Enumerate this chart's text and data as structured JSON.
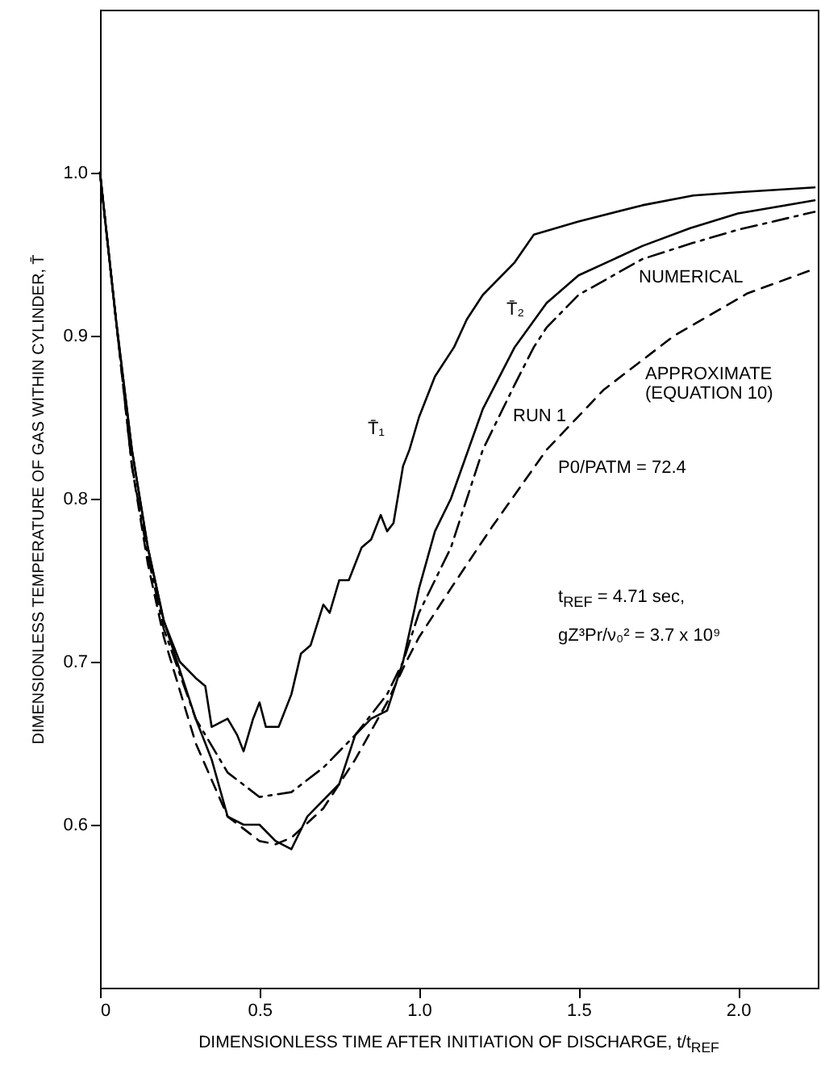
{
  "chart_data": {
    "type": "line",
    "xlabel": "DIMENSIONLESS TIME AFTER INITIATION OF DISCHARGE, t/t$_{REF}$",
    "ylabel": "DIMENSIONLESS TEMPERATURE OF GAS WITHIN CYLINDER, T̄",
    "xlim": [
      0,
      2.25
    ],
    "ylim": [
      0.5,
      1.1
    ],
    "xticks": [
      {
        "value": 0,
        "label": "0"
      },
      0.5,
      {
        "value": 1,
        "label": "1.0"
      },
      1.5,
      {
        "value": 2,
        "label": "2.0"
      }
    ],
    "yticks": [
      0.6,
      0.7,
      0.8,
      0.9,
      {
        "value": 1,
        "label": "1.0"
      }
    ],
    "grid": false,
    "marker": "none",
    "series": [
      {
        "color": "#000000",
        "line_style": "solid",
        "x": [
          0,
          0.05,
          0.1,
          0.15,
          0.2,
          0.25,
          0.3,
          0.33,
          0.35,
          0.4,
          0.43,
          0.45,
          0.48,
          0.5,
          0.52,
          0.56,
          0.6,
          0.63,
          0.66,
          0.7,
          0.72,
          0.75,
          0.78,
          0.8,
          0.82,
          0.85,
          0.88,
          0.9,
          0.92,
          0.95,
          0.97,
          1.0,
          1.05,
          1.11,
          1.15,
          1.2,
          1.3,
          1.36,
          1.5,
          1.7,
          1.86,
          2.0,
          2.24
        ],
        "values": [
          1.0,
          0.91,
          0.83,
          0.77,
          0.725,
          0.7,
          0.69,
          0.685,
          0.66,
          0.665,
          0.655,
          0.645,
          0.665,
          0.675,
          0.66,
          0.66,
          0.68,
          0.705,
          0.71,
          0.735,
          0.73,
          0.75,
          0.75,
          0.76,
          0.77,
          0.775,
          0.79,
          0.78,
          0.785,
          0.82,
          0.83,
          0.85,
          0.875,
          0.893,
          0.91,
          0.925,
          0.945,
          0.962,
          0.97,
          0.98,
          0.986,
          0.988,
          0.991
        ]
      },
      {
        "color": "#000000",
        "line_style": "solid",
        "x": [
          0,
          0.05,
          0.1,
          0.15,
          0.2,
          0.25,
          0.3,
          0.35,
          0.4,
          0.45,
          0.5,
          0.55,
          0.6,
          0.65,
          0.7,
          0.75,
          0.8,
          0.85,
          0.9,
          0.95,
          1.0,
          1.05,
          1.1,
          1.2,
          1.3,
          1.4,
          1.5,
          1.7,
          1.85,
          2.0,
          2.24
        ],
        "values": [
          1.0,
          0.91,
          0.83,
          0.77,
          0.725,
          0.695,
          0.665,
          0.64,
          0.605,
          0.6,
          0.6,
          0.59,
          0.585,
          0.605,
          0.615,
          0.625,
          0.655,
          0.665,
          0.67,
          0.7,
          0.745,
          0.78,
          0.8,
          0.855,
          0.893,
          0.92,
          0.937,
          0.955,
          0.966,
          0.975,
          0.983
        ]
      },
      {
        "color": "#000000",
        "line_style": "dashdot",
        "x": [
          0,
          0.05,
          0.1,
          0.15,
          0.2,
          0.3,
          0.4,
          0.5,
          0.6,
          0.7,
          0.8,
          0.9,
          0.95,
          1.0,
          1.05,
          1.1,
          1.2,
          1.3,
          1.36,
          1.4,
          1.5,
          1.7,
          1.86,
          2.0,
          2.24
        ],
        "values": [
          1.0,
          0.91,
          0.82,
          0.765,
          0.72,
          0.665,
          0.632,
          0.617,
          0.62,
          0.635,
          0.655,
          0.68,
          0.7,
          0.73,
          0.75,
          0.77,
          0.83,
          0.87,
          0.893,
          0.905,
          0.925,
          0.947,
          0.957,
          0.965,
          0.976
        ]
      },
      {
        "color": "#000000",
        "line_style": "dashed",
        "x": [
          0,
          0.05,
          0.1,
          0.15,
          0.2,
          0.3,
          0.4,
          0.5,
          0.55,
          0.6,
          0.7,
          0.8,
          0.9,
          0.96,
          1.0,
          1.1,
          1.23,
          1.4,
          1.58,
          1.8,
          2.03,
          2.24
        ],
        "values": [
          1.0,
          0.91,
          0.82,
          0.76,
          0.715,
          0.65,
          0.605,
          0.59,
          0.588,
          0.592,
          0.61,
          0.64,
          0.675,
          0.7,
          0.715,
          0.745,
          0.783,
          0.83,
          0.867,
          0.9,
          0.926,
          0.941
        ]
      }
    ],
    "annotations": [
      "T̄₁",
      "T̄₂",
      "NUMERICAL",
      "APPROXIMATE (EQUATION 10)",
      "RUN 1",
      "P0/PATM = 72.4",
      "t$_{REF}$ = 4.71 sec,",
      "gZ³Pr/ν₀² = 3.7 x 10⁹"
    ]
  }
}
